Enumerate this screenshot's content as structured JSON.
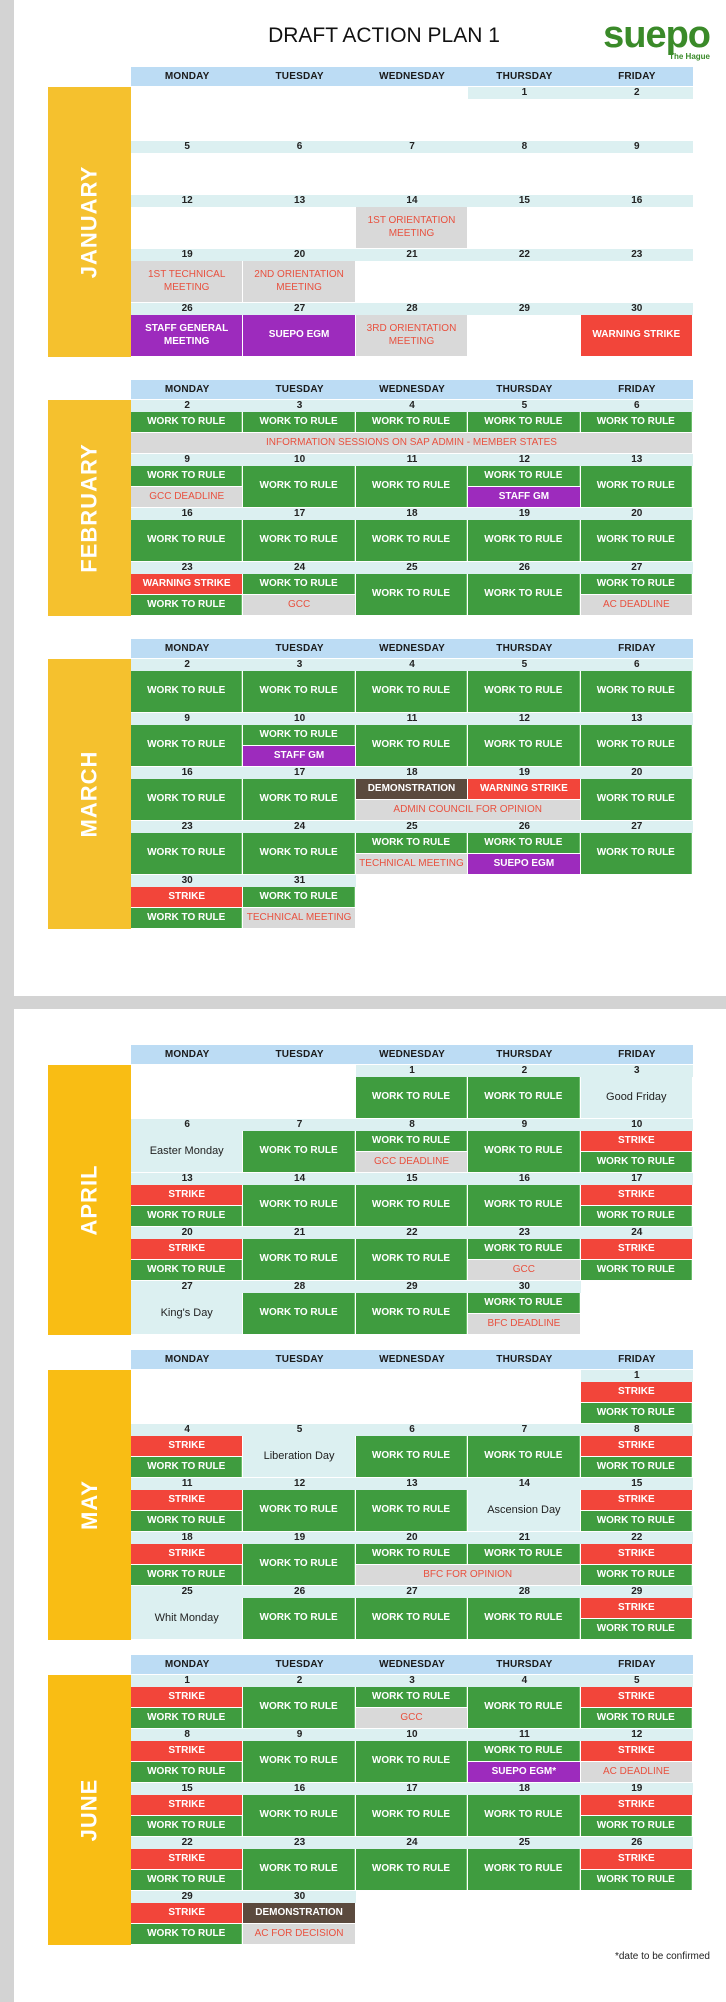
{
  "title": "DRAFT ACTION PLAN 1",
  "logo": {
    "text": "suepo",
    "subtitle": "The Hague"
  },
  "weekdays": [
    "MONDAY",
    "TUESDAY",
    "WEDNESDAY",
    "THURSDAY",
    "FRIDAY"
  ],
  "footnote": "*date to be confirmed",
  "labels": {
    "wtr": "WORK TO RULE",
    "strike": "STRIKE",
    "warning_strike": "WARNING STRIKE",
    "info_sessions": "INFORMATION SESSIONS ON SAP ADMIN - MEMBER STATES",
    "gcc_deadline": "GCC DEADLINE",
    "staff_gm": "STAFF GM",
    "gcc": "GCC",
    "ac_deadline": "AC DEADLINE",
    "demonstration": "DEMONSTRATION",
    "admin_council": "ADMIN COUNCIL FOR OPINION",
    "technical_meeting": "TECHNICAL MEETING",
    "suepo_egm": "SUEPO EGM",
    "suepo_egm_star": "SUEPO EGM*",
    "good_friday": "Good Friday",
    "easter_monday": "Easter Monday",
    "kings_day": "King's Day",
    "bfc_deadline": "BFC DEADLINE",
    "liberation_day": "Liberation Day",
    "ascension_day": "Ascension Day",
    "bfc_opinion": "BFC FOR OPINION",
    "whit_monday": "Whit Monday",
    "ac_decision": "AC FOR DECISION",
    "staff_general_meeting": "STAFF GENERAL MEETING",
    "suepo_egm_2": "SUEPO EGM",
    "orientation_1": "1ST ORIENTATION MEETING",
    "orientation_2": "2ND ORIENTATION MEETING",
    "orientation_3": "3RD ORIENTATION MEETING",
    "technical_1": "1ST TECHNICAL MEETING"
  },
  "months": [
    {
      "name": "JANUARY",
      "weeks": [
        [
          "",
          "",
          "",
          "1",
          "2"
        ],
        [
          "5",
          "6",
          "7",
          "8",
          "9"
        ],
        [
          "12",
          "13",
          "14",
          "15",
          "16"
        ],
        [
          "19",
          "20",
          "21",
          "22",
          "23"
        ],
        [
          "26",
          "27",
          "28",
          "29",
          "30"
        ]
      ]
    },
    {
      "name": "FEBRUARY",
      "weeks": [
        [
          "2",
          "3",
          "4",
          "5",
          "6"
        ],
        [
          "9",
          "10",
          "11",
          "12",
          "13"
        ],
        [
          "16",
          "17",
          "18",
          "19",
          "20"
        ],
        [
          "23",
          "24",
          "25",
          "26",
          "27"
        ]
      ]
    },
    {
      "name": "MARCH",
      "weeks": [
        [
          "2",
          "3",
          "4",
          "5",
          "6"
        ],
        [
          "9",
          "10",
          "11",
          "12",
          "13"
        ],
        [
          "16",
          "17",
          "18",
          "19",
          "20"
        ],
        [
          "23",
          "24",
          "25",
          "26",
          "27"
        ],
        [
          "30",
          "31",
          "",
          "",
          ""
        ]
      ]
    },
    {
      "name": "APRIL",
      "weeks": [
        [
          "",
          "",
          "1",
          "2",
          "3"
        ],
        [
          "6",
          "7",
          "8",
          "9",
          "10"
        ],
        [
          "13",
          "14",
          "15",
          "16",
          "17"
        ],
        [
          "20",
          "21",
          "22",
          "23",
          "24"
        ],
        [
          "27",
          "28",
          "29",
          "30",
          ""
        ]
      ]
    },
    {
      "name": "MAY",
      "weeks": [
        [
          "",
          "",
          "",
          "",
          "1"
        ],
        [
          "4",
          "5",
          "6",
          "7",
          "8"
        ],
        [
          "11",
          "12",
          "13",
          "14",
          "15"
        ],
        [
          "18",
          "19",
          "20",
          "21",
          "22"
        ],
        [
          "25",
          "26",
          "27",
          "28",
          "29"
        ]
      ]
    },
    {
      "name": "JUNE",
      "weeks": [
        [
          "1",
          "2",
          "3",
          "4",
          "5"
        ],
        [
          "8",
          "9",
          "10",
          "11",
          "12"
        ],
        [
          "15",
          "16",
          "17",
          "18",
          "19"
        ],
        [
          "22",
          "23",
          "24",
          "25",
          "26"
        ],
        [
          "29",
          "30",
          "",
          "",
          ""
        ]
      ]
    }
  ],
  "colors": {
    "wtr": "#3f9c3f",
    "strike": "#f2453a",
    "egm": "#9d2bbd",
    "meeting": "#d9d9d9",
    "demonstration": "#5b4a3e",
    "month_bar": "#f5c12e",
    "header": "#bcdcf4",
    "date_row": "#dcf0f1",
    "logo": "#3a8a29"
  }
}
